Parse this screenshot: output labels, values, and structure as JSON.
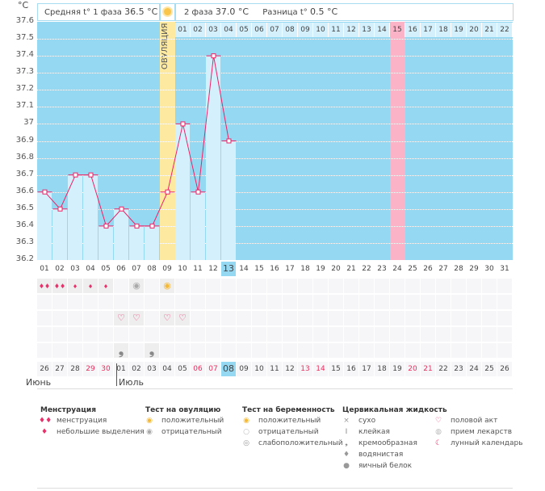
{
  "axis": {
    "unit": "°C",
    "ticks": [
      "37.6",
      "37.5",
      "37.4",
      "37.3",
      "37.2",
      "37.1",
      "37",
      "36.9",
      "36.8",
      "36.7",
      "36.6",
      "36.5",
      "36.4",
      "36.3",
      "36.2"
    ]
  },
  "header": {
    "phase1": "Средняя t° 1 фаза",
    "phase1_value": "36.5 °C",
    "phase2": "2 фаза",
    "phase2_value": "37.0 °C",
    "diff": "Разница t°",
    "diff_value": "0.5 °C"
  },
  "ovulation_label": "ОВУЛЯЦИЯ",
  "post_ovulation_days": [
    "01",
    "02",
    "03",
    "04",
    "05",
    "06",
    "07",
    "08",
    "09",
    "10",
    "11",
    "12",
    "13",
    "14",
    "15",
    "16",
    "17",
    "18",
    "19",
    "20",
    "21",
    "22"
  ],
  "cycle_days": [
    "01",
    "02",
    "03",
    "04",
    "05",
    "06",
    "07",
    "08",
    "09",
    "10",
    "11",
    "12",
    "13",
    "14",
    "15",
    "16",
    "17",
    "18",
    "19",
    "20",
    "21",
    "22",
    "23",
    "24",
    "25",
    "26",
    "27",
    "28",
    "29",
    "30",
    "31"
  ],
  "current_cycle_day": "13",
  "ovulation_day": 9,
  "expected_period_day": 24,
  "chart_data": {
    "type": "line",
    "xlabel": "",
    "ylabel": "°C",
    "ylim": [
      36.2,
      37.6
    ],
    "x": [
      1,
      2,
      3,
      4,
      5,
      6,
      7,
      8,
      9,
      10,
      11,
      12,
      13
    ],
    "values": [
      36.6,
      36.5,
      36.7,
      36.7,
      36.4,
      36.5,
      36.4,
      36.4,
      36.6,
      37.0,
      36.6,
      37.4,
      36.9
    ]
  },
  "calendar_dates": [
    "26",
    "27",
    "28",
    "29",
    "30",
    "01",
    "02",
    "03",
    "04",
    "05",
    "06",
    "07",
    "08",
    "09",
    "10",
    "11",
    "12",
    "13",
    "14",
    "15",
    "16",
    "17",
    "18",
    "19",
    "20",
    "21",
    "22",
    "23",
    "24",
    "25",
    "26"
  ],
  "weekend_indices": [
    3,
    4,
    10,
    11,
    17,
    18,
    24,
    25
  ],
  "today_index": 12,
  "months": [
    "Июнь",
    "Июль"
  ],
  "marks": {
    "menstruation": {
      "heavy": [
        1,
        2
      ],
      "light": [
        3,
        4,
        5
      ]
    },
    "ovulation_test": {
      "negative": [
        7
      ],
      "positive": [
        9
      ]
    },
    "intercourse": [
      6,
      7,
      9,
      10
    ],
    "creamy": [
      6,
      8
    ]
  },
  "legend": {
    "menstruation": {
      "title": "Менструация",
      "items": [
        "менструация",
        "небольшие выделения"
      ]
    },
    "ovulation_test": {
      "title": "Тест на овуляцию",
      "items": [
        "положительный",
        "отрицательный"
      ]
    },
    "pregnancy_test": {
      "title": "Тест на беременность",
      "items": [
        "положительный",
        "отрицательный",
        "слабоположительный"
      ]
    },
    "cervical": {
      "title": "Цервикальная жидкость",
      "items": [
        "сухо",
        "клейкая",
        "кремообразная",
        "водянистая",
        "яичный белок"
      ]
    },
    "other": {
      "items": [
        "половой акт",
        "прием лекарств",
        "лунный календарь"
      ]
    }
  },
  "colors": {
    "sky": "#95d8f2",
    "bar": "#d3f0fc",
    "ovulation": "#fdeaa0",
    "period": "#fbb3c8",
    "line": "#ee2266",
    "weekend": "#e8305f"
  }
}
